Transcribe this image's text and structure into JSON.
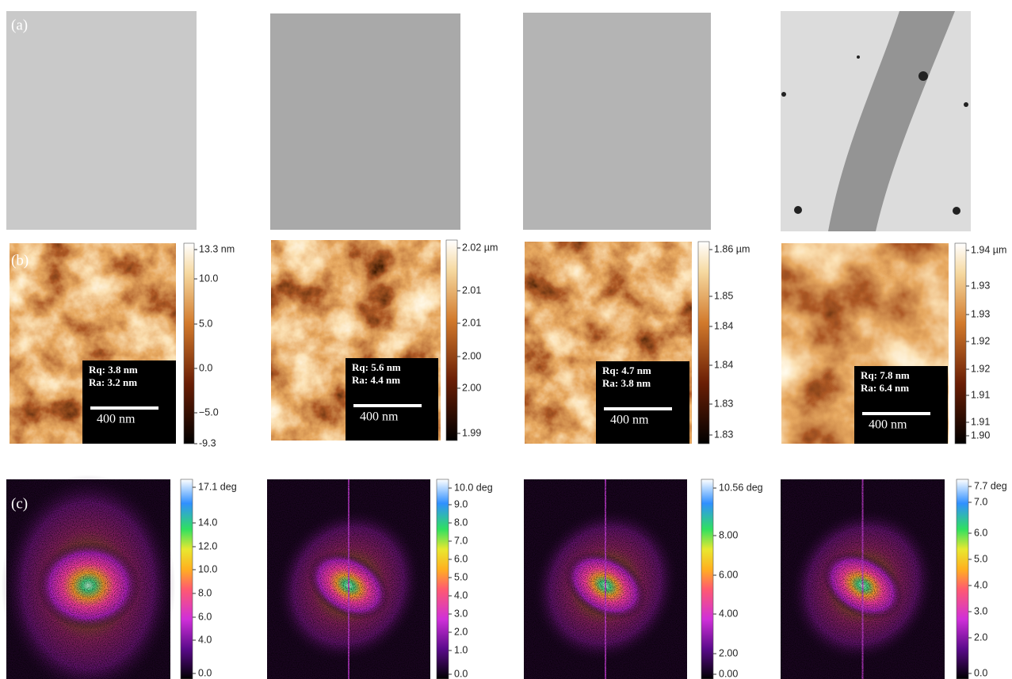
{
  "panel_labels": [
    "(a)",
    "(b)",
    "(c)"
  ],
  "height_maps": [
    {
      "colorbar": [
        "13.3 nm",
        "10.0",
        "5.0",
        "0.0",
        "−5.0",
        "-9.3"
      ],
      "rq": "Rq: 3.8 nm",
      "ra": "Ra: 3.2 nm",
      "scale": "400 nm"
    },
    {
      "colorbar": [
        "2.02 µm",
        "2.01",
        "2.01",
        "2.00",
        "2.00",
        "1.99"
      ],
      "rq": "Rq: 5.6 nm",
      "ra": "Ra: 4.4 nm",
      "scale": "400 nm"
    },
    {
      "colorbar": [
        "1.86 µm",
        "1.85",
        "1.84",
        "1.84",
        "1.83",
        "1.83"
      ],
      "rq": "Rq: 4.7 nm",
      "ra": "Ra: 3.8 nm",
      "scale": "400 nm"
    },
    {
      "colorbar": [
        "1.94 µm",
        "1.93",
        "1.93",
        "1.92",
        "1.92",
        "1.91",
        "1.91",
        "1.90"
      ],
      "rq": "Rq: 7.8 nm",
      "ra": "Ra: 6.4 nm",
      "scale": "400 nm"
    }
  ],
  "phase_maps": [
    {
      "colorbar": [
        "17.1 deg",
        "14.0",
        "12.0",
        "10.0",
        "8.0",
        "6.0",
        "4.0",
        "0.0"
      ]
    },
    {
      "colorbar": [
        "10.0 deg",
        "9.0",
        "8.0",
        "7.0",
        "6.0",
        "5.0",
        "4.0",
        "3.0",
        "2.0",
        "1.0",
        "0.0"
      ]
    },
    {
      "colorbar": [
        "10.56 deg",
        "8.00",
        "6.00",
        "4.00",
        "2.00",
        "0.00"
      ]
    },
    {
      "colorbar": [
        "7.7 deg",
        "7.0",
        "6.0",
        "5.0",
        "4.0",
        "3.0",
        "2.0",
        "0.0"
      ]
    }
  ]
}
